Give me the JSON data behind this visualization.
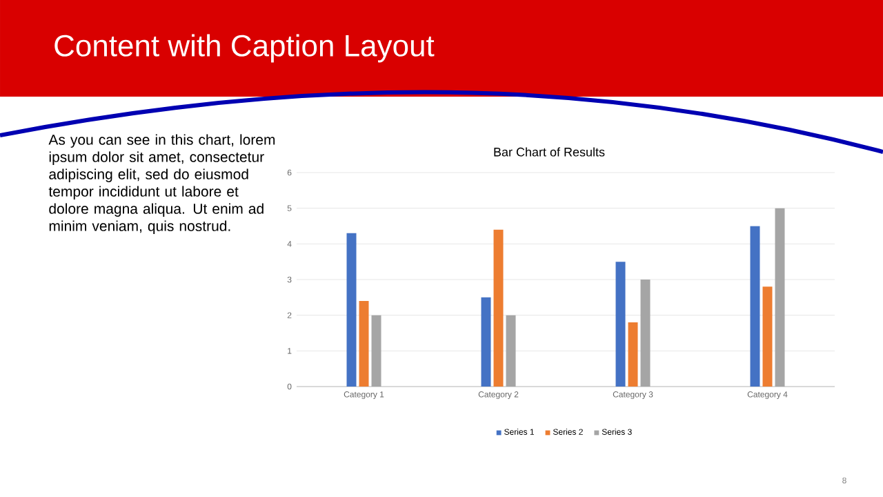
{
  "chart_data": {
    "type": "bar",
    "title": "Content with Caption Layout",
    "subtitle": "Bar Chart of Results",
    "categories": [
      "Category 1",
      "Category 2",
      "Category 3",
      "Category 4"
    ],
    "series": [
      {
        "name": "Series 1",
        "color": "#4472c4",
        "values": [
          4.3,
          2.5,
          3.5,
          4.5
        ]
      },
      {
        "name": "Series 2",
        "color": "#ed7d31",
        "values": [
          2.4,
          4.4,
          1.8,
          2.8
        ]
      },
      {
        "name": "Series 3",
        "color": "#a5a5a5",
        "values": [
          2,
          2,
          3,
          5
        ]
      }
    ],
    "ylim": [
      0,
      6
    ],
    "yticks": [
      0,
      1,
      2,
      3,
      4,
      5,
      6
    ],
    "grid": "y",
    "legend": "bottom",
    "annotations": [
      "As you can see in this chart, lorem ipsum dolor sit amet, consectetur adipiscing elit, sed do eiusmod tempor incididunt ut labore et dolore magna aliqua. Ut enim ad minim veniam, quis nostrud.",
      "8"
    ]
  }
}
